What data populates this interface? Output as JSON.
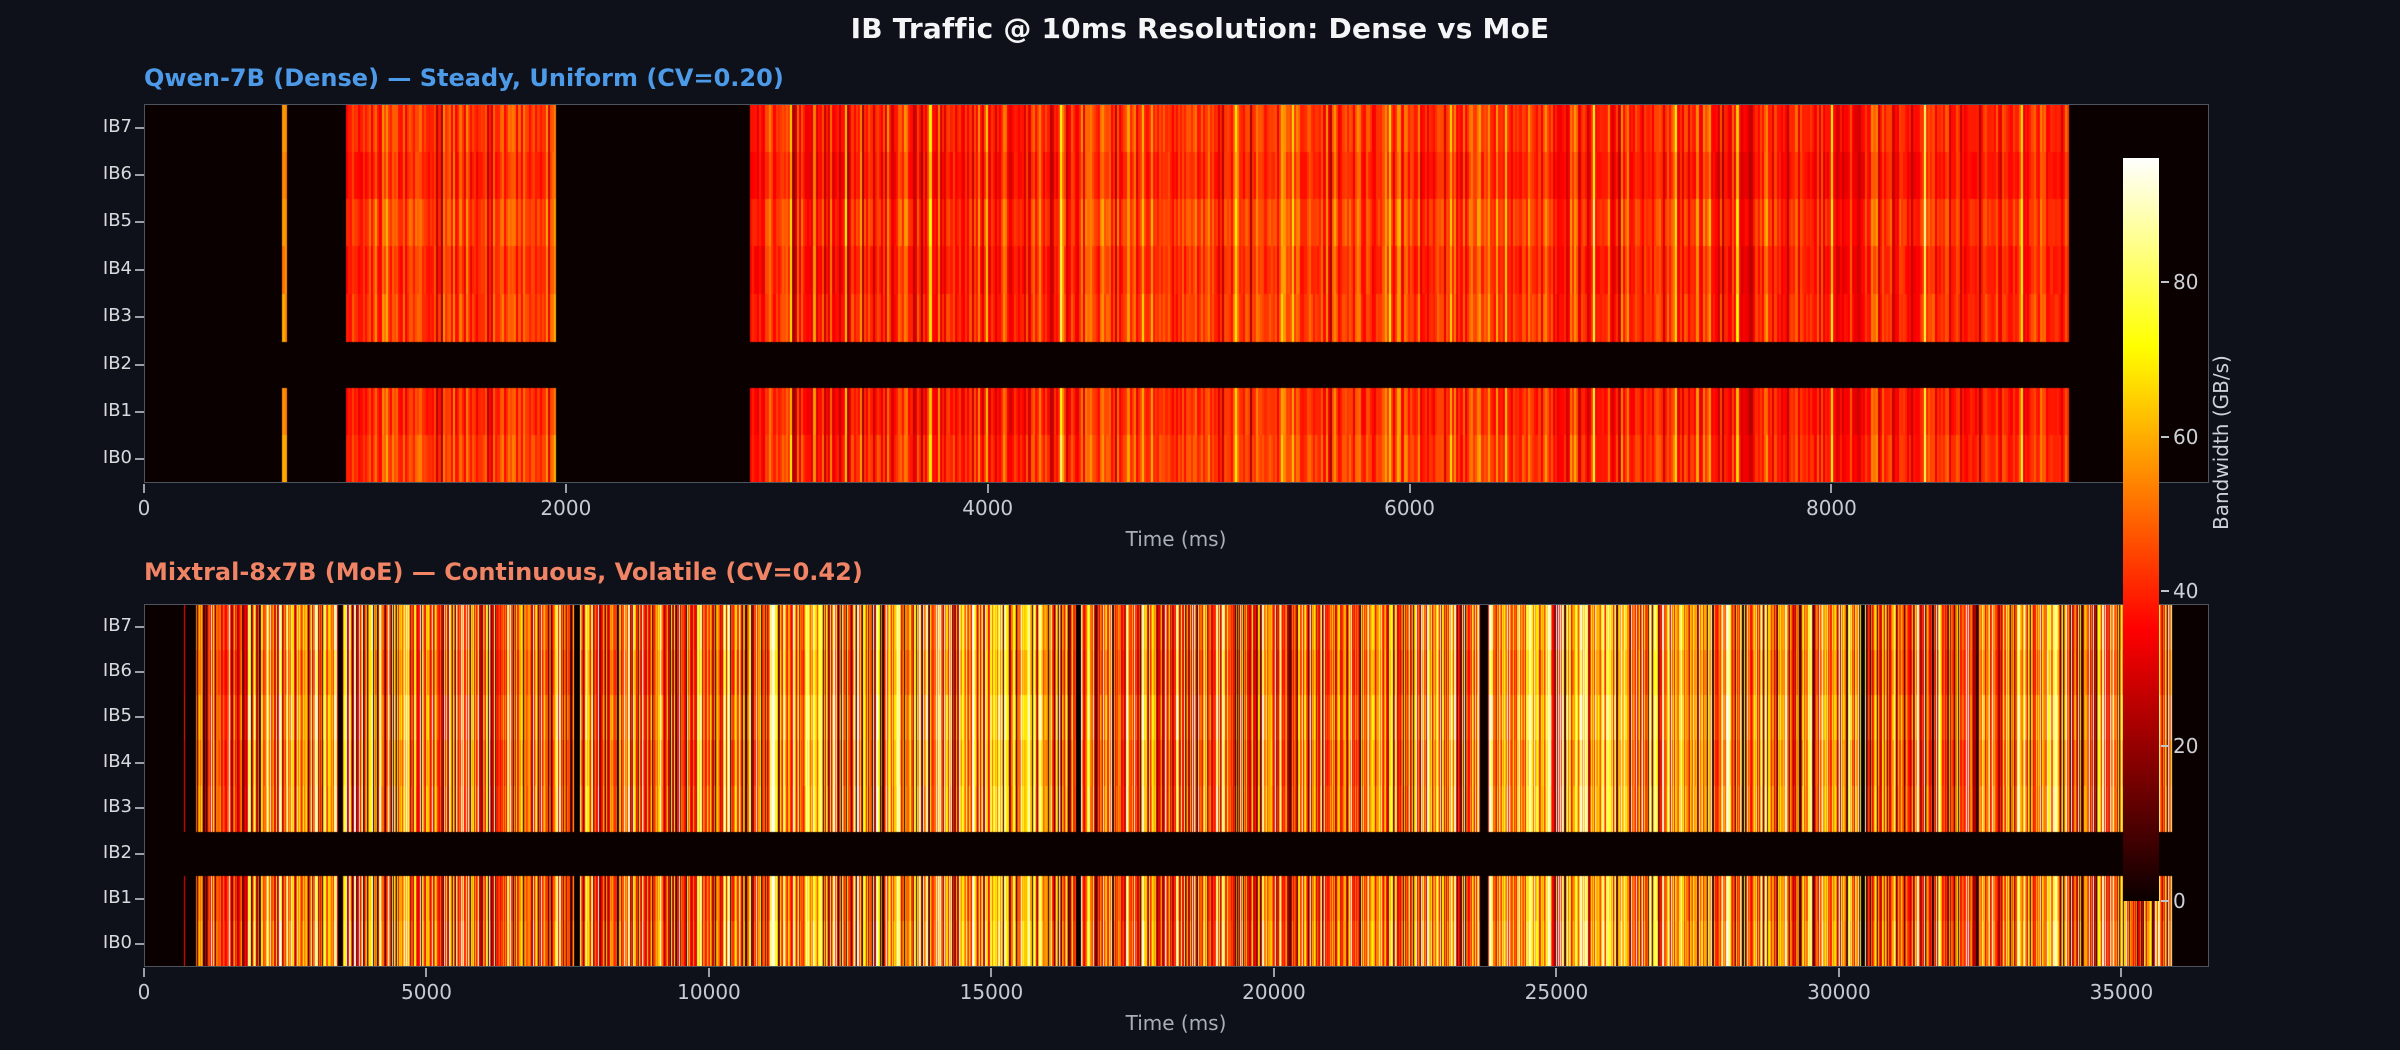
{
  "title": "IB Traffic @ 10ms Resolution: Dense vs MoE",
  "colors": {
    "background": "#0e1119",
    "title": "#f3f5f7",
    "tick_label": "#c6cbd2",
    "row_label": "#d8dbde",
    "axis_label": "#a9afb8",
    "spine": "#4d545e",
    "heatmap_zero": "#0b0000"
  },
  "colorbar": {
    "label": "Bandwidth (GB/s)",
    "ticks": [
      0,
      20,
      40,
      60,
      80
    ],
    "vmin": 0,
    "vmax": 96,
    "colormap": "hot"
  },
  "chart_data": [
    {
      "type": "heatmap",
      "panel": "qwen-dense",
      "title": "Qwen-7B (Dense) — Steady, Uniform (CV=0.20)",
      "title_color": "#4d9be8",
      "rows": [
        "IB7",
        "IB6",
        "IB5",
        "IB4",
        "IB3",
        "IB2",
        "IB1",
        "IB0"
      ],
      "inactive_rows": [
        "IB2"
      ],
      "xlabel": "Time (ms)",
      "x_ticks": [
        0,
        2000,
        4000,
        6000,
        8000
      ],
      "x_max_ms": 9790,
      "time_step_ms": 10,
      "colormap": "hot",
      "vmin": 0,
      "vmax": 96,
      "bandwidth_mean_gbps": 40,
      "bandwidth_cv": 0.2,
      "active_windows_ms": [
        [
          645,
          668
        ],
        [
          950,
          1950
        ],
        [
          2870,
          9130
        ]
      ],
      "quiet_gaps_ms": [],
      "isolated_spike_ms": [
        645,
        668
      ],
      "isolated_spike_bw_gbps": 55,
      "spike_period_ms": 360,
      "spike_bw_gbps": 70,
      "row_gain": [
        1.0,
        0.95,
        1.05,
        0.98,
        1.02,
        0,
        0.97,
        1.03
      ],
      "seed": 11
    },
    {
      "type": "heatmap",
      "panel": "mixtral-moe",
      "title": "Mixtral-8x7B (MoE) — Continuous, Volatile (CV=0.42)",
      "title_color": "#f08465",
      "rows": [
        "IB7",
        "IB6",
        "IB5",
        "IB4",
        "IB3",
        "IB2",
        "IB1",
        "IB0"
      ],
      "inactive_rows": [
        "IB2"
      ],
      "xlabel": "Time (ms)",
      "x_ticks": [
        0,
        5000,
        10000,
        15000,
        20000,
        25000,
        30000,
        35000
      ],
      "x_max_ms": 36550,
      "time_step_ms": 10,
      "colormap": "hot",
      "vmin": 0,
      "vmax": 96,
      "bandwidth_mean_gbps": 52,
      "bandwidth_cv": 0.42,
      "active_windows_ms": [
        [
          685,
          700
        ],
        [
          900,
          35900
        ]
      ],
      "quiet_gaps_ms": [
        [
          3410,
          3500
        ],
        [
          7600,
          7690
        ],
        [
          16480,
          16570
        ],
        [
          23650,
          23780
        ],
        [
          30390,
          30470
        ]
      ],
      "isolated_spike_ms": [
        685,
        700
      ],
      "isolated_spike_bw_gbps": 36,
      "spike_period_ms": 420,
      "spike_bw_gbps": 92,
      "row_gain": [
        1.0,
        0.96,
        1.04,
        0.99,
        1.02,
        0,
        0.97,
        1.01
      ],
      "seed": 42
    }
  ]
}
